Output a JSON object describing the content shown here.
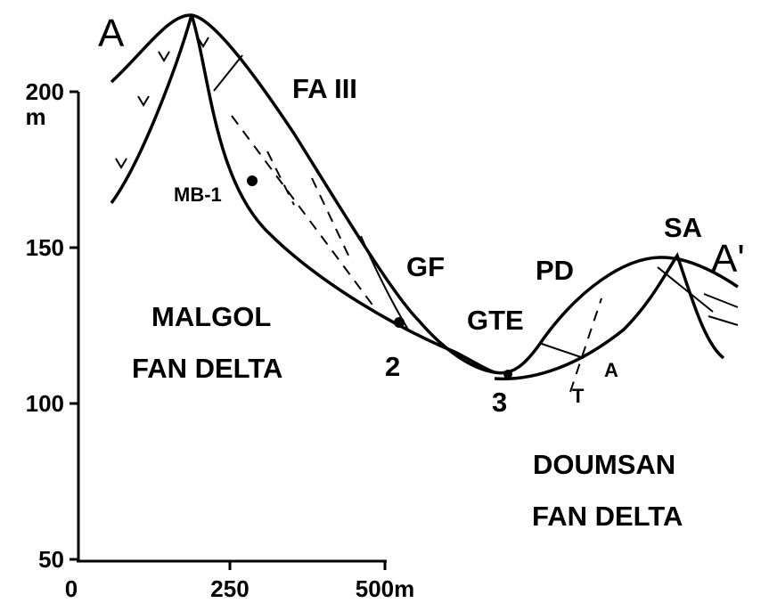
{
  "axes": {
    "y_ticks": [
      200,
      150,
      100,
      50
    ],
    "y_unit": "m",
    "x_ticks": [
      0,
      250,
      "500m"
    ]
  },
  "section": {
    "start": "A",
    "end": "A'"
  },
  "labels": {
    "fa": "FA III",
    "borehole": "MB-1",
    "gf": "GF",
    "gte": "GTE",
    "pd": "PD",
    "sa": "SA",
    "site_2": "2",
    "site_3": "3",
    "fault_t": "T",
    "fault_a": "A"
  },
  "units": {
    "malgol": [
      "MALGOL",
      "FAN DELTA"
    ],
    "doumsan": [
      "DOUMSAN",
      "FAN DELTA"
    ]
  }
}
